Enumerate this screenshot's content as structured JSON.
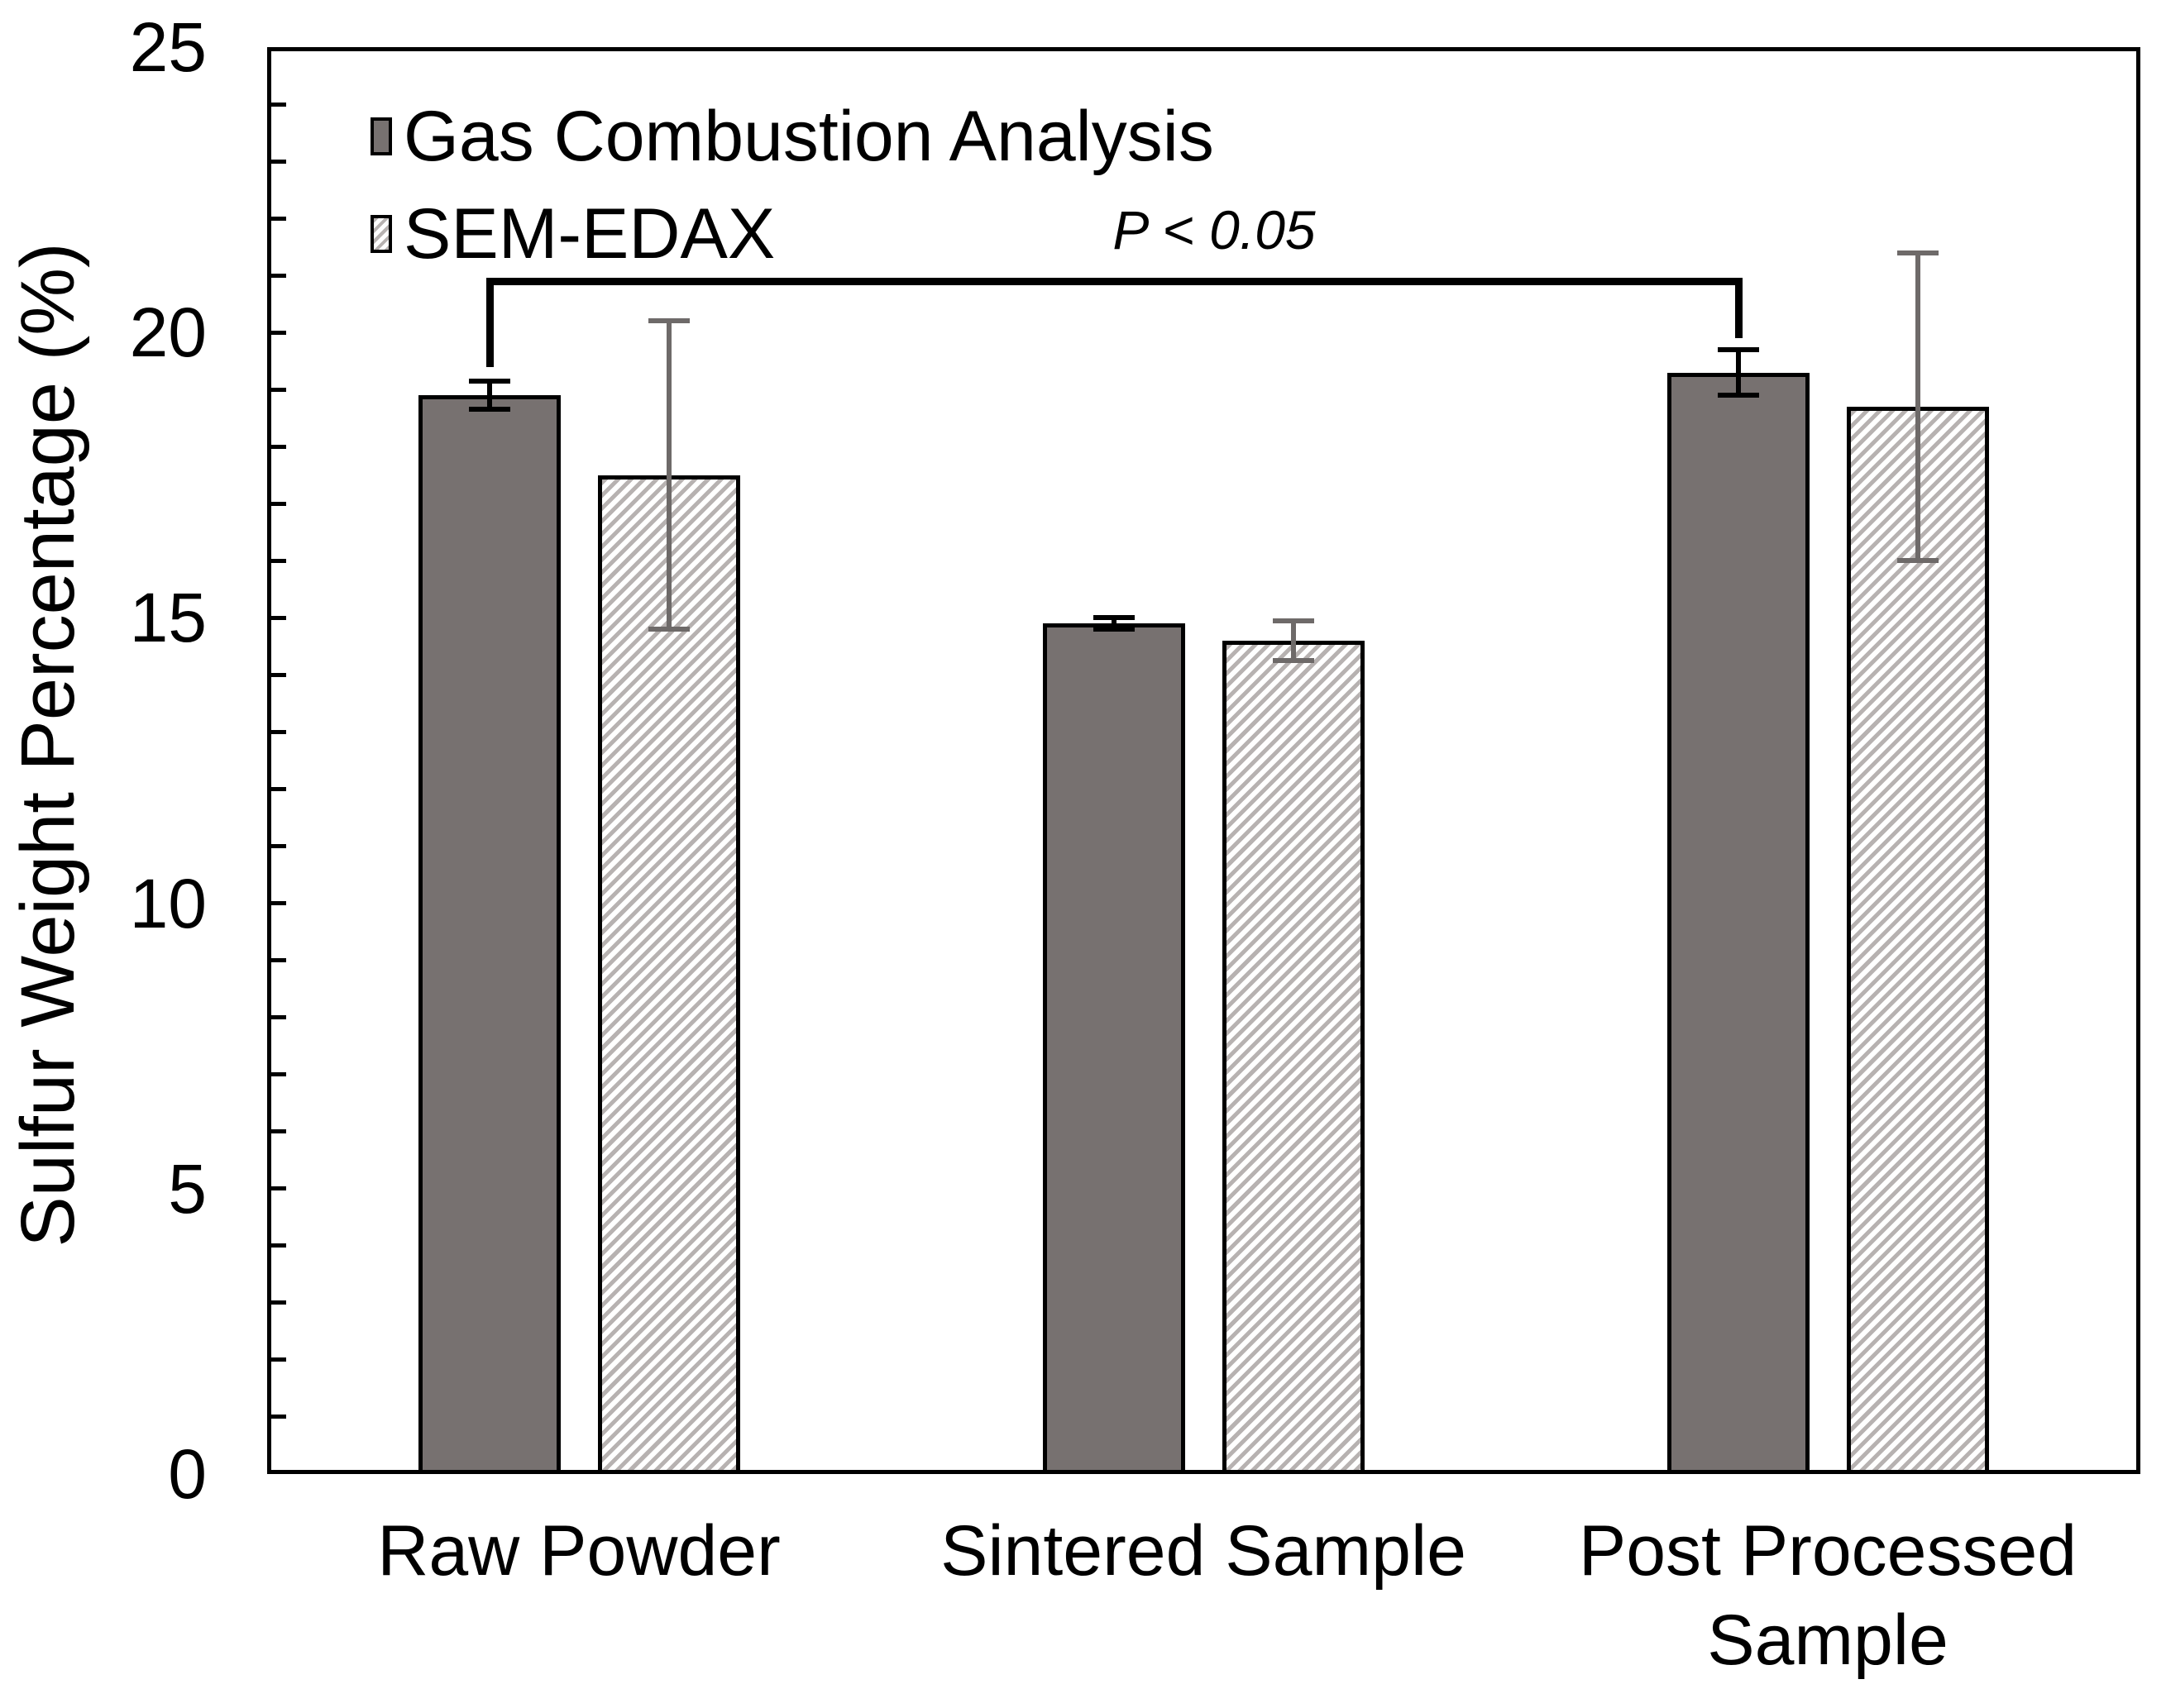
{
  "figure": {
    "background": "#ffffff"
  },
  "chart_data": {
    "type": "bar",
    "title": "",
    "xlabel": "",
    "ylabel": "Sulfur Weight Percentage (%)",
    "categories": [
      "Raw Powder",
      "Sintered Sample",
      "Post Processed Sample"
    ],
    "series": [
      {
        "name": "Gas Combustion Analysis",
        "style": "solid",
        "fill_color": "#777170",
        "border_color": "#000000",
        "error_bar_color": "#000000",
        "values": [
          18.9,
          14.9,
          19.3
        ],
        "errors": [
          0.25,
          0.1,
          0.4
        ]
      },
      {
        "name": "SEM-EDAX",
        "style": "hatch",
        "hatch_stripe_color": "#b7b2b1",
        "hatch_bg_color": "#ffffff",
        "border_color": "#000000",
        "error_bar_color": "#6e6a69",
        "values": [
          17.5,
          14.6,
          18.7
        ],
        "errors": [
          2.7,
          0.35,
          2.7
        ]
      }
    ],
    "ylim": [
      0,
      25
    ],
    "yticks_major": [
      0,
      5,
      10,
      15,
      20,
      25
    ],
    "ytick_minor_step": 1,
    "grid": false,
    "legend_position": "top-left-inside",
    "annotation": {
      "label": "P < 0.05",
      "bar_y": 20.9,
      "from_category": 0,
      "to_category": 2,
      "series": 0,
      "drop_left_to": 19.4,
      "drop_right_to": 19.9
    }
  }
}
